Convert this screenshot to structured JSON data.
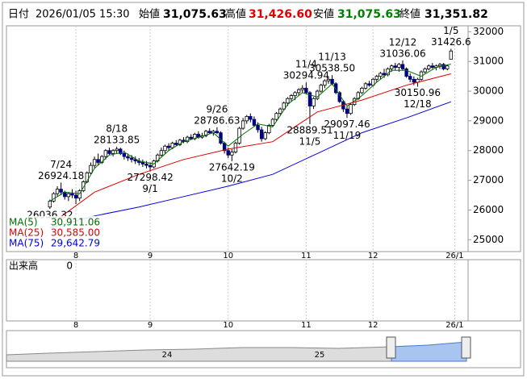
{
  "chart_data": {
    "type": "candlestick",
    "header": {
      "date_label": "日付",
      "datetime": "2026/01/05 15:30",
      "open_label": "始値",
      "open": "31,075.63",
      "high_label": "高値",
      "high": "31,426.60",
      "low_label": "安値",
      "low": "31,075.63",
      "close_label": "終値",
      "close": "31,351.82"
    },
    "up_color": "#ffffff",
    "down_color": "#000080",
    "candles": [
      [
        26100,
        26350,
        26036.32,
        26300
      ],
      [
        26300,
        26600,
        26250,
        26550
      ],
      [
        26550,
        26800,
        26450,
        26700
      ],
      [
        26700,
        26924.18,
        26500,
        26600
      ],
      [
        26600,
        26650,
        26350,
        26450
      ],
      [
        26450,
        26600,
        26300,
        26550
      ],
      [
        26550,
        26700,
        26400,
        26500
      ],
      [
        26500,
        26650,
        26200,
        26400
      ],
      [
        26400,
        26700,
        26300,
        26650
      ],
      [
        26650,
        27000,
        26600,
        26950
      ],
      [
        26950,
        27300,
        26900,
        27250
      ],
      [
        27250,
        27600,
        27200,
        27500
      ],
      [
        27500,
        27800,
        27400,
        27700
      ],
      [
        27700,
        27900,
        27500,
        27600
      ],
      [
        27600,
        27850,
        27550,
        27800
      ],
      [
        27800,
        28050,
        27700,
        28000
      ],
      [
        28000,
        28100,
        27850,
        27900
      ],
      [
        27900,
        28050,
        27800,
        28000
      ],
      [
        28000,
        28133.85,
        27900,
        28050
      ],
      [
        28050,
        28100,
        27850,
        27900
      ],
      [
        27900,
        28000,
        27700,
        27800
      ],
      [
        27800,
        27900,
        27650,
        27750
      ],
      [
        27750,
        27850,
        27600,
        27700
      ],
      [
        27700,
        27800,
        27550,
        27650
      ],
      [
        27650,
        27750,
        27500,
        27600
      ],
      [
        27600,
        27700,
        27450,
        27550
      ],
      [
        27550,
        27650,
        27400,
        27500
      ],
      [
        27500,
        27600,
        27298.42,
        27450
      ],
      [
        27450,
        27700,
        27400,
        27650
      ],
      [
        27650,
        27900,
        27600,
        27850
      ],
      [
        27850,
        28100,
        27800,
        28000
      ],
      [
        28000,
        28200,
        27900,
        28150
      ],
      [
        28150,
        28250,
        28000,
        28100
      ],
      [
        28100,
        28300,
        28050,
        28250
      ],
      [
        28250,
        28350,
        28150,
        28200
      ],
      [
        28200,
        28400,
        28150,
        28350
      ],
      [
        28350,
        28450,
        28250,
        28300
      ],
      [
        28300,
        28500,
        28250,
        28450
      ],
      [
        28450,
        28550,
        28350,
        28400
      ],
      [
        28400,
        28600,
        28350,
        28550
      ],
      [
        28550,
        28650,
        28400,
        28450
      ],
      [
        28450,
        28600,
        28400,
        28500
      ],
      [
        28500,
        28700,
        28450,
        28650
      ],
      [
        28650,
        28750,
        28550,
        28600
      ],
      [
        28600,
        28700,
        28500,
        28650
      ],
      [
        28650,
        28786.63,
        28550,
        28600
      ],
      [
        28600,
        28650,
        28200,
        28250
      ],
      [
        28250,
        28300,
        27900,
        28000
      ],
      [
        28000,
        28100,
        27750,
        27850
      ],
      [
        27850,
        28050,
        27642.19,
        27950
      ],
      [
        27950,
        28300,
        27900,
        28250
      ],
      [
        28250,
        28800,
        28200,
        28750
      ],
      [
        28750,
        29100,
        28700,
        29000
      ],
      [
        29000,
        29200,
        28900,
        29150
      ],
      [
        29150,
        29250,
        28950,
        29050
      ],
      [
        29050,
        29150,
        28800,
        28850
      ],
      [
        28850,
        28950,
        28600,
        28700
      ],
      [
        28700,
        28800,
        28300,
        28400
      ],
      [
        28400,
        28650,
        28350,
        28600
      ],
      [
        28600,
        28900,
        28550,
        28850
      ],
      [
        28850,
        29100,
        28800,
        29050
      ],
      [
        29050,
        29300,
        29000,
        29250
      ],
      [
        29250,
        29450,
        29200,
        29400
      ],
      [
        29400,
        29650,
        29350,
        29600
      ],
      [
        29600,
        29800,
        29500,
        29750
      ],
      [
        29750,
        29900,
        29650,
        29850
      ],
      [
        29850,
        30000,
        29700,
        29950
      ],
      [
        29950,
        30100,
        29850,
        30050
      ],
      [
        30050,
        30200,
        29950,
        30100
      ],
      [
        30100,
        30294.94,
        29900,
        29950
      ],
      [
        29950,
        30000,
        28889.51,
        29500
      ],
      [
        29500,
        29800,
        29400,
        29750
      ],
      [
        29750,
        30050,
        29700,
        30000
      ],
      [
        30000,
        30250,
        29950,
        30200
      ],
      [
        30200,
        30400,
        30100,
        30350
      ],
      [
        30350,
        30500,
        30250,
        30400
      ],
      [
        30400,
        30538.5,
        30200,
        30250
      ],
      [
        30250,
        30300,
        29900,
        29950
      ],
      [
        29950,
        30000,
        29600,
        29650
      ],
      [
        29650,
        29700,
        29300,
        29400
      ],
      [
        29400,
        29500,
        29097.46,
        29250
      ],
      [
        29250,
        29600,
        29200,
        29550
      ],
      [
        29550,
        29800,
        29500,
        29750
      ],
      [
        29750,
        30000,
        29700,
        29950
      ],
      [
        29950,
        30150,
        29900,
        30100
      ],
      [
        30100,
        30300,
        30050,
        30250
      ],
      [
        30250,
        30350,
        30150,
        30200
      ],
      [
        30200,
        30450,
        30150,
        30400
      ],
      [
        30400,
        30550,
        30300,
        30500
      ],
      [
        30500,
        30650,
        30400,
        30600
      ],
      [
        30600,
        30750,
        30450,
        30550
      ],
      [
        30550,
        30800,
        30500,
        30750
      ],
      [
        30750,
        30900,
        30650,
        30850
      ],
      [
        30850,
        30950,
        30700,
        30800
      ],
      [
        30800,
        30950,
        30650,
        30900
      ],
      [
        30900,
        31036.06,
        30700,
        30750
      ],
      [
        30750,
        30800,
        30450,
        30500
      ],
      [
        30500,
        30600,
        30300,
        30400
      ],
      [
        30400,
        30500,
        30200,
        30300
      ],
      [
        30300,
        30450,
        30150.96,
        30400
      ],
      [
        30400,
        30700,
        30350,
        30650
      ],
      [
        30650,
        30800,
        30600,
        30750
      ],
      [
        30750,
        30900,
        30700,
        30850
      ],
      [
        30850,
        30950,
        30750,
        30800
      ],
      [
        30800,
        30900,
        30700,
        30850
      ],
      [
        30850,
        30950,
        30750,
        30900
      ],
      [
        30900,
        30950,
        30700,
        30750
      ],
      [
        30750,
        30900,
        30700,
        30850
      ],
      [
        31075.63,
        31426.6,
        31075.63,
        31351.82
      ]
    ],
    "series": [
      {
        "name": "MA(5)",
        "color": "#007000",
        "legend_value": "30,911.06",
        "x": [
          0,
          4,
          8,
          12,
          16,
          20,
          24,
          28,
          32,
          36,
          40,
          44,
          48,
          52,
          56,
          60,
          64,
          68,
          72,
          76,
          80,
          84,
          88,
          92,
          96,
          100,
          104,
          108
        ],
        "values": [
          26300,
          26600,
          26550,
          27400,
          27850,
          27950,
          27650,
          27550,
          28000,
          28300,
          28450,
          28600,
          28150,
          28550,
          28900,
          28800,
          29550,
          29950,
          29800,
          30250,
          29500,
          29850,
          30300,
          30700,
          30700,
          30500,
          30800,
          30911.06
        ]
      },
      {
        "name": "MA(25)",
        "color": "#e00000",
        "legend_value": "30,585.00",
        "x": [
          0,
          12,
          24,
          36,
          48,
          60,
          72,
          84,
          96,
          108
        ],
        "values": [
          25500,
          26600,
          27200,
          27700,
          28050,
          28300,
          29300,
          29700,
          30200,
          30585
        ]
      },
      {
        "name": "MA(75)",
        "color": "#0000e0",
        "legend_value": "29,642.79",
        "x": [
          0,
          12,
          24,
          36,
          48,
          60,
          72,
          84,
          96,
          108
        ],
        "values": [
          25400,
          25800,
          26100,
          26450,
          26800,
          27200,
          27900,
          28600,
          29100,
          29642.79
        ]
      }
    ],
    "annotations": [
      {
        "date": "7/24",
        "value": 26924.18
      },
      {
        "value": 26036.32
      },
      {
        "date": "8/18",
        "value": 28133.85
      },
      {
        "date": "9/1",
        "value": 27298.42
      },
      {
        "date": "9/26",
        "value": 28786.63
      },
      {
        "date": "10/2",
        "value": 27642.19
      },
      {
        "date": "11/4",
        "value": 30294.94
      },
      {
        "date": "11/5",
        "value": 28889.51
      },
      {
        "date": "11/13",
        "value": 30538.5,
        "value_label": "30538.50"
      },
      {
        "date": "11/19",
        "value": 29097.46
      },
      {
        "date": "12/12",
        "value": 31036.06
      },
      {
        "date": "12/18",
        "value": 30150.96
      },
      {
        "date": "1/5",
        "value": 31426.6
      }
    ],
    "xlim": [
      -11.7,
      112.6
    ],
    "xticks": [
      {
        "value": 7,
        "label": "8"
      },
      {
        "value": 27,
        "label": "9"
      },
      {
        "value": 48,
        "label": "10"
      },
      {
        "value": 69,
        "label": "11"
      },
      {
        "value": 87,
        "label": "12"
      },
      {
        "value": 109,
        "label": "26/1"
      }
    ],
    "ylim": [
      24600,
      32200
    ],
    "yticks": [
      25000,
      26000,
      27000,
      28000,
      29000,
      30000,
      31000,
      32000
    ],
    "grid": "x",
    "volume": {
      "label": "出来高",
      "yticks": [
        0
      ]
    },
    "navigator": {
      "labels": [
        "24",
        "25"
      ]
    }
  }
}
